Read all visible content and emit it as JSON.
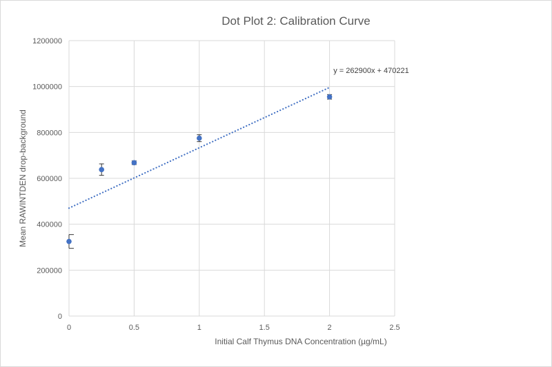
{
  "chart_data": {
    "type": "scatter",
    "title": "Dot Plot 2: Calibration Curve",
    "xlabel": "Initial Calf Thymus DNA Concentration (µg/mL)",
    "ylabel": "Mean RAWINTDEN drop-background",
    "xlim": [
      0,
      2.5
    ],
    "ylim": [
      0,
      1200000
    ],
    "xticks": [
      "0",
      "0.5",
      "1",
      "1.5",
      "2",
      "2.5"
    ],
    "yticks": [
      "0",
      "200000",
      "400000",
      "600000",
      "800000",
      "1000000",
      "1200000"
    ],
    "grid": true,
    "legend": "none",
    "series": [
      {
        "x": [
          0,
          0.25,
          0.5,
          1,
          2
        ],
        "y": [
          325000,
          638000,
          668000,
          775000,
          955000
        ],
        "error": [
          30000,
          25000,
          8000,
          15000,
          10000
        ],
        "color": "#4472c4"
      }
    ],
    "trendline": {
      "type": "linear",
      "slope": 262900,
      "intercept": 470221,
      "x_range": [
        0,
        2
      ],
      "equation": "y = 262900x + 470221",
      "color": "#4472c4",
      "style": "dotted"
    }
  }
}
